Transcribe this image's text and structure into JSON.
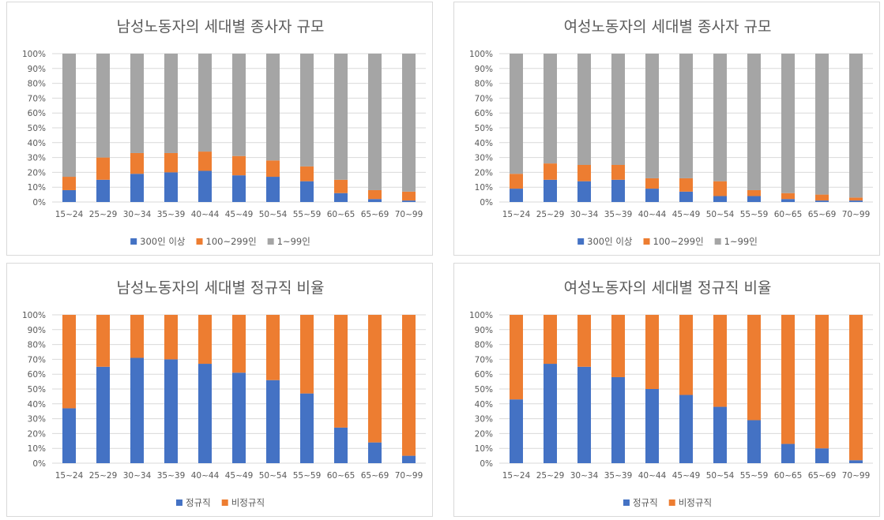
{
  "colors": {
    "blue": "#4472c4",
    "orange": "#ed7d31",
    "gray": "#a5a5a5"
  },
  "chart_data": [
    {
      "type": "bar",
      "stacked": "percent",
      "title": "남성노동자의 세대별 종사자 규모",
      "categories": [
        "15~24",
        "25~29",
        "30~34",
        "35~39",
        "40~44",
        "45~49",
        "50~54",
        "55~59",
        "60~65",
        "65~69",
        "70~99"
      ],
      "yticks": [
        "0%",
        "10%",
        "20%",
        "30%",
        "40%",
        "50%",
        "60%",
        "70%",
        "80%",
        "90%",
        "100%"
      ],
      "ylim": [
        0,
        100
      ],
      "legend_position": "bottom",
      "series": [
        {
          "name": "300인 이상",
          "color": "#4472c4",
          "values": [
            8,
            15,
            19,
            20,
            21,
            18,
            17,
            14,
            6,
            2,
            1
          ]
        },
        {
          "name": "100~299인",
          "color": "#ed7d31",
          "values": [
            9,
            15,
            14,
            13,
            13,
            13,
            11,
            10,
            9,
            6,
            6
          ]
        },
        {
          "name": "1~99인",
          "color": "#a5a5a5",
          "values": [
            83,
            70,
            67,
            67,
            66,
            69,
            72,
            76,
            85,
            92,
            93
          ]
        }
      ]
    },
    {
      "type": "bar",
      "stacked": "percent",
      "title": "여성노동자의 세대별 종사자 규모",
      "categories": [
        "15~24",
        "25~29",
        "30~34",
        "35~39",
        "40~44",
        "45~49",
        "50~54",
        "55~59",
        "60~65",
        "65~69",
        "70~99"
      ],
      "yticks": [
        "0%",
        "10%",
        "20%",
        "30%",
        "40%",
        "50%",
        "60%",
        "70%",
        "80%",
        "90%",
        "100%"
      ],
      "ylim": [
        0,
        100
      ],
      "legend_position": "bottom",
      "series": [
        {
          "name": "300인 이상",
          "color": "#4472c4",
          "values": [
            9,
            15,
            14,
            15,
            9,
            7,
            4,
            4,
            2,
            1,
            1
          ]
        },
        {
          "name": "100~299인",
          "color": "#ed7d31",
          "values": [
            10,
            11,
            11,
            10,
            7,
            9,
            10,
            4,
            4,
            4,
            2
          ]
        },
        {
          "name": "1~99인",
          "color": "#a5a5a5",
          "values": [
            81,
            74,
            75,
            75,
            84,
            84,
            86,
            92,
            94,
            95,
            97
          ]
        }
      ]
    },
    {
      "type": "bar",
      "stacked": "percent",
      "title": "남성노동자의 세대별 정규직 비율",
      "categories": [
        "15~24",
        "25~29",
        "30~34",
        "35~39",
        "40~44",
        "45~49",
        "50~54",
        "55~59",
        "60~65",
        "65~69",
        "70~99"
      ],
      "yticks": [
        "0%",
        "10%",
        "20%",
        "30%",
        "40%",
        "50%",
        "60%",
        "70%",
        "80%",
        "90%",
        "100%"
      ],
      "ylim": [
        0,
        100
      ],
      "legend_position": "bottom",
      "series": [
        {
          "name": "정규직",
          "color": "#4472c4",
          "values": [
            37,
            65,
            71,
            70,
            67,
            61,
            56,
            47,
            24,
            14,
            5
          ]
        },
        {
          "name": "비정규직",
          "color": "#ed7d31",
          "values": [
            63,
            35,
            29,
            30,
            33,
            39,
            44,
            53,
            76,
            86,
            95
          ]
        }
      ]
    },
    {
      "type": "bar",
      "stacked": "percent",
      "title": "여성노동자의 세대별 정규직 비율",
      "categories": [
        "15~24",
        "25~29",
        "30~34",
        "35~39",
        "40~44",
        "45~49",
        "50~54",
        "55~59",
        "60~65",
        "65~69",
        "70~99"
      ],
      "yticks": [
        "0%",
        "10%",
        "20%",
        "30%",
        "40%",
        "50%",
        "60%",
        "70%",
        "80%",
        "90%",
        "100%"
      ],
      "ylim": [
        0,
        100
      ],
      "legend_position": "bottom",
      "series": [
        {
          "name": "정규직",
          "color": "#4472c4",
          "values": [
            43,
            67,
            65,
            58,
            50,
            46,
            38,
            29,
            13,
            10,
            2
          ]
        },
        {
          "name": "비정규직",
          "color": "#ed7d31",
          "values": [
            57,
            33,
            35,
            42,
            50,
            54,
            62,
            71,
            87,
            90,
            98
          ]
        }
      ]
    }
  ]
}
